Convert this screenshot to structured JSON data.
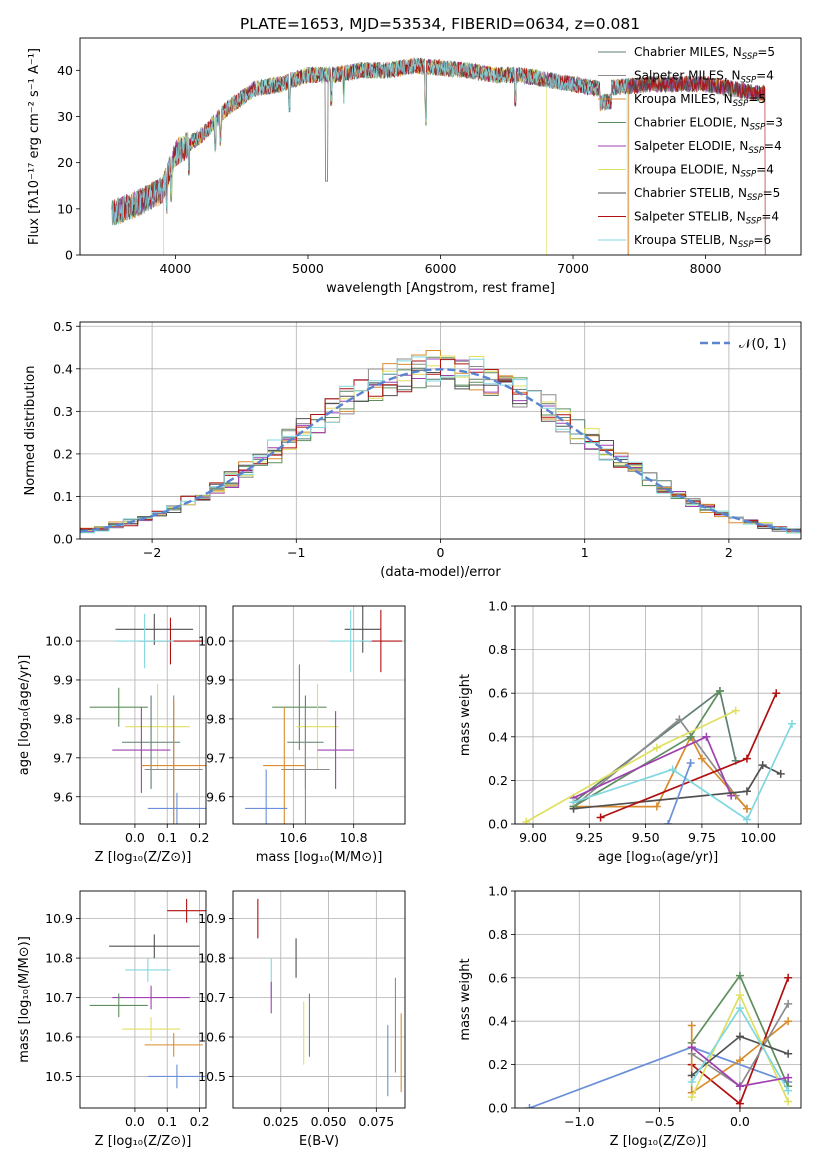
{
  "figure_title": "PLATE=1653, MJD=53534, FIBERID=0634, z=0.081",
  "colors": {
    "series": [
      "#5f7f6f",
      "#8c8c8c",
      "#d98c2e",
      "#5f8f5f",
      "#a040b0",
      "#e0e060",
      "#505050",
      "#b01010",
      "#80d8e0"
    ],
    "grid": "#b0b0b0",
    "gauss": "#5b84d0"
  },
  "chart_data": [
    {
      "type": "line",
      "title": "PLATE=1653, MJD=53534, FIBERID=0634, z=0.081",
      "xlabel": "wavelength [Angstrom, rest frame]",
      "ylabel": "Flux [fλ10⁻¹⁷ erg cm⁻² s⁻¹ A⁻¹]",
      "xlim": [
        3280,
        8720
      ],
      "ylim": [
        0,
        47
      ],
      "xticks": [
        4000,
        5000,
        6000,
        7000,
        8000
      ],
      "yticks": [
        0,
        10,
        20,
        30,
        40
      ],
      "grid": false,
      "legend_position": "upper right",
      "series": [
        {
          "name": "Chabrier MILES, NSSP=5"
        },
        {
          "name": "Salpeter MILES, NSSP=4"
        },
        {
          "name": "Kroupa MILES, NSSP=5"
        },
        {
          "name": "Chabrier ELODIE, NSSP=3"
        },
        {
          "name": "Salpeter ELODIE, NSSP=4"
        },
        {
          "name": "Kroupa ELODIE, NSSP=4"
        },
        {
          "name": "Chabrier STELIB, NSSP=5"
        },
        {
          "name": "Salpeter STELIB, NSSP=4"
        },
        {
          "name": "Kroupa STELIB, NSSP=6"
        }
      ],
      "continuum": {
        "x": [
          3520,
          3700,
          3900,
          4000,
          4200,
          4400,
          4600,
          4800,
          5000,
          5200,
          5400,
          5600,
          5800,
          6000,
          6200,
          6400,
          6600,
          6800,
          7000,
          7200,
          7400,
          7600,
          7800,
          8000,
          8200,
          8400
        ],
        "y": [
          9,
          11,
          14,
          22,
          26,
          32,
          36,
          37,
          39,
          39,
          40,
          40,
          41,
          40.5,
          40,
          39,
          39,
          38,
          37,
          36,
          36.5,
          37,
          37,
          37,
          36,
          35
        ]
      },
      "line_end_x": [
        8450,
        8450,
        8450,
        8450,
        8450,
        6800,
        8450,
        8450,
        7410
      ],
      "line_start_x": [
        3520,
        3520,
        3520,
        3520,
        3520,
        3910,
        3520,
        3520,
        3520
      ]
    },
    {
      "type": "histogram",
      "xlabel": "(data-model)/error",
      "ylabel": "Normed distribution",
      "xlim": [
        -2.5,
        2.5
      ],
      "ylim": [
        0,
        0.51
      ],
      "xticks": [
        -2,
        -1,
        0,
        1,
        2
      ],
      "yticks": [
        0.0,
        0.1,
        0.2,
        0.3,
        0.4,
        0.5
      ],
      "grid": true,
      "legend_position": "upper right",
      "gaussian_label": "𝒩(0, 1)",
      "bin_width": 0.1
    },
    {
      "type": "errorbar",
      "xlabel": "Z [log₁₀(Z/Z⊙)]",
      "ylabel": "age  [log₁₀(age/yr)]",
      "xlim": [
        -0.17,
        0.22
      ],
      "ylim": [
        9.53,
        10.09
      ],
      "xticks": [
        0.0,
        0.1,
        0.2
      ],
      "yticks": [
        9.6,
        9.7,
        9.8,
        9.9,
        10.0
      ],
      "grid": true,
      "points": [
        {
          "x": 0.06,
          "xerr": 0.12,
          "y": 10.03,
          "yerr": 0.04,
          "c": 6
        },
        {
          "x": 0.11,
          "xerr": 0.1,
          "y": 10.0,
          "yerr": 0.06,
          "c": 7
        },
        {
          "x": 0.03,
          "xerr": 0.09,
          "y": 10.0,
          "yerr": 0.07,
          "c": 8
        },
        {
          "x": -0.05,
          "xerr": 0.09,
          "y": 9.83,
          "yerr": 0.05,
          "c": 3
        },
        {
          "x": 0.07,
          "xerr": 0.1,
          "y": 9.78,
          "yerr": 0.11,
          "c": 5
        },
        {
          "x": 0.05,
          "xerr": 0.09,
          "y": 9.74,
          "yerr": 0.12,
          "c": 0
        },
        {
          "x": 0.02,
          "xerr": 0.09,
          "y": 9.72,
          "yerr": 0.11,
          "c": 4
        },
        {
          "x": 0.12,
          "xerr": 0.09,
          "y": 9.67,
          "yerr": 0.19,
          "c": 1
        },
        {
          "x": 0.12,
          "xerr": 0.1,
          "y": 9.68,
          "yerr": 0.17,
          "c": 2
        },
        {
          "x": 0.13,
          "xerr": 0.09,
          "y": 9.57,
          "yerr": 0.04,
          "c": 9
        }
      ]
    },
    {
      "type": "errorbar",
      "xlabel": "mass [log₁₀(M/M⊙)]",
      "ylabel": "",
      "xlim": [
        10.4,
        10.97
      ],
      "ylim": [
        9.53,
        10.09
      ],
      "xticks": [
        10.6,
        10.8
      ],
      "yticks": [
        9.6,
        9.7,
        9.8,
        9.9,
        10.0
      ],
      "grid": true,
      "points": [
        {
          "x": 10.83,
          "xerr": 0.06,
          "y": 10.03,
          "yerr": 0.06,
          "c": 6
        },
        {
          "x": 10.89,
          "xerr": 0.07,
          "y": 10.0,
          "yerr": 0.08,
          "c": 7
        },
        {
          "x": 10.79,
          "xerr": 0.07,
          "y": 10.0,
          "yerr": 0.08,
          "c": 8
        },
        {
          "x": 10.62,
          "xerr": 0.09,
          "y": 9.83,
          "yerr": 0.11,
          "c": 3
        },
        {
          "x": 10.68,
          "xerr": 0.07,
          "y": 9.78,
          "yerr": 0.11,
          "c": 5
        },
        {
          "x": 10.64,
          "xerr": 0.06,
          "y": 9.74,
          "yerr": 0.12,
          "c": 0
        },
        {
          "x": 10.74,
          "xerr": 0.06,
          "y": 9.72,
          "yerr": 0.1,
          "c": 4
        },
        {
          "x": 10.64,
          "xerr": 0.08,
          "y": 9.67,
          "yerr": 0.16,
          "c": 1
        },
        {
          "x": 10.57,
          "xerr": 0.07,
          "y": 9.68,
          "yerr": 0.15,
          "c": 2
        },
        {
          "x": 10.51,
          "xerr": 0.07,
          "y": 9.57,
          "yerr": 0.1,
          "c": 9
        }
      ]
    },
    {
      "type": "line",
      "xlabel": "age  [log₁₀(age/yr)]",
      "ylabel": "mass weight",
      "xlim": [
        8.92,
        10.19
      ],
      "ylim": [
        0,
        1.0
      ],
      "xticks": [
        9.0,
        9.25,
        9.5,
        9.75,
        10.0
      ],
      "yticks": [
        0.0,
        0.2,
        0.4,
        0.6,
        0.8,
        1.0
      ],
      "grid": true,
      "series": [
        {
          "c": 0,
          "x": [
            9.18,
            9.83,
            9.9
          ],
          "y": [
            0.1,
            0.61,
            0.29
          ]
        },
        {
          "c": 1,
          "x": [
            9.18,
            9.65,
            9.9,
            9.95
          ],
          "y": [
            0.08,
            0.48,
            0.13,
            0.07
          ]
        },
        {
          "c": 2,
          "x": [
            9.18,
            9.55,
            9.7,
            9.75,
            9.95
          ],
          "y": [
            0.08,
            0.08,
            0.4,
            0.3,
            0.07
          ]
        },
        {
          "c": 3,
          "x": [
            9.18,
            9.7,
            9.83
          ],
          "y": [
            0.08,
            0.4,
            0.61
          ]
        },
        {
          "c": 4,
          "x": [
            9.18,
            9.77,
            9.88
          ],
          "y": [
            0.12,
            0.4,
            0.13
          ]
        },
        {
          "c": 5,
          "x": [
            8.97,
            9.55,
            9.9
          ],
          "y": [
            0.01,
            0.35,
            0.52
          ]
        },
        {
          "c": 6,
          "x": [
            9.18,
            9.95,
            10.02,
            10.1
          ],
          "y": [
            0.07,
            0.15,
            0.27,
            0.23
          ]
        },
        {
          "c": 7,
          "x": [
            9.3,
            9.95,
            10.08
          ],
          "y": [
            0.03,
            0.3,
            0.6
          ]
        },
        {
          "c": 8,
          "x": [
            9.18,
            9.62,
            9.95,
            10.15
          ],
          "y": [
            0.1,
            0.25,
            0.02,
            0.46
          ]
        },
        {
          "c": 9,
          "x": [
            9.6,
            9.7
          ],
          "y": [
            0.0,
            0.28
          ]
        }
      ]
    },
    {
      "type": "errorbar",
      "xlabel": "Z [log₁₀(Z/Z⊙)]",
      "ylabel": "mass [log₁₀(M/M⊙)]",
      "xlim": [
        -0.17,
        0.22
      ],
      "ylim": [
        10.42,
        10.97
      ],
      "xticks": [
        0.0,
        0.1,
        0.2
      ],
      "yticks": [
        10.5,
        10.6,
        10.7,
        10.8,
        10.9
      ],
      "grid": true,
      "points": [
        {
          "x": 0.16,
          "xerr": 0.06,
          "y": 10.92,
          "yerr": 0.03,
          "c": 7
        },
        {
          "x": 0.06,
          "xerr": 0.14,
          "y": 10.83,
          "yerr": 0.03,
          "c": 6
        },
        {
          "x": 0.04,
          "xerr": 0.07,
          "y": 10.77,
          "yerr": 0.03,
          "c": 8
        },
        {
          "x": 0.05,
          "xerr": 0.12,
          "y": 10.7,
          "yerr": 0.03,
          "c": 4
        },
        {
          "x": -0.05,
          "xerr": 0.09,
          "y": 10.68,
          "yerr": 0.03,
          "c": 3
        },
        {
          "x": 0.05,
          "xerr": 0.09,
          "y": 10.62,
          "yerr": 0.03,
          "c": 5
        },
        {
          "x": 0.12,
          "xerr": 0.09,
          "y": 10.58,
          "yerr": 0.03,
          "c": 2
        },
        {
          "x": 0.13,
          "xerr": 0.09,
          "y": 10.5,
          "yerr": 0.03,
          "c": 9
        }
      ]
    },
    {
      "type": "errorbar",
      "xlabel": "E(B-V)",
      "ylabel": "",
      "xlim": [
        0.0,
        0.09
      ],
      "ylim": [
        10.42,
        10.97
      ],
      "xticks": [
        0.025,
        0.05,
        0.075
      ],
      "yticks": [
        10.5,
        10.6,
        10.7,
        10.8,
        10.9
      ],
      "grid": true,
      "points": [
        {
          "x": 0.013,
          "xerr": 0.0,
          "y": 10.9,
          "yerr": 0.05,
          "c": 7
        },
        {
          "x": 0.033,
          "xerr": 0.0,
          "y": 10.8,
          "yerr": 0.05,
          "c": 6
        },
        {
          "x": 0.02,
          "xerr": 0.0,
          "y": 10.75,
          "yerr": 0.05,
          "c": 8
        },
        {
          "x": 0.02,
          "xerr": 0.0,
          "y": 10.7,
          "yerr": 0.04,
          "c": 4
        },
        {
          "x": 0.04,
          "xerr": 0.0,
          "y": 10.63,
          "yerr": 0.08,
          "c": 3
        },
        {
          "x": 0.037,
          "xerr": 0.0,
          "y": 10.61,
          "yerr": 0.08,
          "c": 5
        },
        {
          "x": 0.085,
          "xerr": 0.0,
          "y": 10.63,
          "yerr": 0.12,
          "c": 1
        },
        {
          "x": 0.088,
          "xerr": 0.0,
          "y": 10.56,
          "yerr": 0.1,
          "c": 2
        },
        {
          "x": 0.081,
          "xerr": 0.0,
          "y": 10.54,
          "yerr": 0.09,
          "c": 9
        }
      ]
    },
    {
      "type": "line",
      "xlabel": "Z [log₁₀(Z/Z⊙)]",
      "ylabel": "mass weight",
      "xlim": [
        -1.4,
        0.38
      ],
      "ylim": [
        0,
        1.0
      ],
      "xticks": [
        -1.0,
        -0.5,
        0.0
      ],
      "yticks": [
        0.0,
        0.2,
        0.4,
        0.6,
        0.8,
        1.0
      ],
      "grid": true,
      "series": [
        {
          "c": 9,
          "x": [
            -1.31,
            -0.3,
            0.3
          ],
          "y": [
            0.0,
            0.28,
            0.12
          ]
        },
        {
          "c": 3,
          "x": [
            -0.3,
            0.0,
            0.3
          ],
          "y": [
            0.3,
            0.61,
            0.1
          ]
        },
        {
          "c": 7,
          "x": [
            -0.3,
            0.0,
            0.3
          ],
          "y": [
            0.2,
            0.02,
            0.6
          ]
        },
        {
          "c": 2,
          "x": [
            -0.3,
            -0.3,
            0.0,
            0.3
          ],
          "y": [
            0.38,
            0.07,
            0.22,
            0.4
          ]
        },
        {
          "c": 1,
          "x": [
            -0.3,
            0.0,
            0.3
          ],
          "y": [
            0.25,
            0.1,
            0.48
          ]
        },
        {
          "c": 5,
          "x": [
            -0.3,
            0.0,
            0.3
          ],
          "y": [
            0.05,
            0.52,
            0.03
          ]
        },
        {
          "c": 6,
          "x": [
            -0.3,
            0.0,
            0.3
          ],
          "y": [
            0.15,
            0.33,
            0.25
          ]
        },
        {
          "c": 8,
          "x": [
            -0.3,
            0.0,
            0.3
          ],
          "y": [
            0.12,
            0.46,
            0.08
          ]
        },
        {
          "c": 4,
          "x": [
            -0.3,
            0.0,
            0.3
          ],
          "y": [
            0.28,
            0.1,
            0.14
          ]
        }
      ]
    }
  ]
}
